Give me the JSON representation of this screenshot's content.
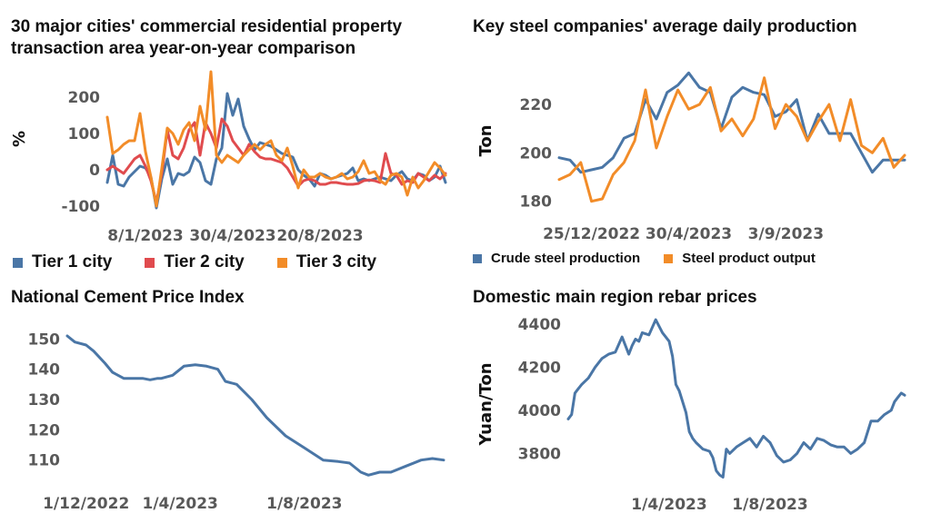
{
  "colors": {
    "tier1": "#4a76a6",
    "tier2": "#e04b4e",
    "tier3": "#f28c28",
    "crude": "#4a76a6",
    "steel": "#f28c28",
    "cement": "#4a76a6",
    "rebar": "#4a76a6"
  },
  "chart_data": [
    {
      "id": "property",
      "type": "line",
      "title": "30 major cities' commercial residential property transaction area year-on-year comparison",
      "ylabel": "%",
      "xlabel": "",
      "ylim": [
        -120,
        280
      ],
      "yticks": [
        "200",
        "100",
        "0",
        "-100"
      ],
      "ytick_values": [
        200,
        100,
        0,
        -100
      ],
      "xticks": [
        "8/1/2023",
        "30/4/2023",
        "20/8/2023"
      ],
      "xtick_index": [
        7,
        23,
        39
      ],
      "n_points": 63,
      "legend_position": "bottom",
      "series": [
        {
          "name": "Tier 1 city",
          "color_key": "tier1",
          "values": [
            -35,
            40,
            -40,
            -45,
            -20,
            -5,
            10,
            5,
            -20,
            -105,
            -25,
            30,
            -40,
            -10,
            -15,
            -5,
            35,
            20,
            -30,
            -40,
            30,
            60,
            210,
            150,
            195,
            120,
            85,
            55,
            75,
            70,
            65,
            55,
            45,
            40,
            35,
            0,
            -15,
            -25,
            -45,
            -10,
            -15,
            -25,
            -20,
            -15,
            -10,
            5,
            -30,
            -25,
            -30,
            -25,
            -20,
            -25,
            -30,
            -15,
            -5,
            -25,
            -30,
            -10,
            -15,
            -30,
            -20,
            10,
            -35
          ]
        },
        {
          "name": "Tier 2 city",
          "color_key": "tier2",
          "values": [
            0,
            10,
            0,
            -10,
            10,
            30,
            40,
            10,
            -30,
            -90,
            -10,
            110,
            40,
            30,
            60,
            110,
            130,
            40,
            130,
            100,
            60,
            140,
            120,
            80,
            60,
            40,
            70,
            50,
            35,
            30,
            30,
            25,
            20,
            5,
            -20,
            -45,
            -30,
            -25,
            -30,
            -40,
            -40,
            -35,
            -35,
            -38,
            -40,
            -40,
            -38,
            -30,
            -28,
            -30,
            -35,
            45,
            -10,
            -15,
            -40,
            -30,
            -35,
            -10,
            -20,
            -30,
            -15,
            -25,
            -10
          ]
        },
        {
          "name": "Tier 3 city",
          "color_key": "tier3",
          "values": [
            145,
            45,
            55,
            70,
            80,
            80,
            155,
            50,
            -20,
            -100,
            5,
            115,
            100,
            70,
            110,
            130,
            80,
            175,
            110,
            270,
            40,
            20,
            40,
            30,
            20,
            40,
            55,
            70,
            55,
            70,
            80,
            40,
            25,
            60,
            10,
            -50,
            0,
            -20,
            -20,
            -10,
            -20,
            -25,
            -20,
            -10,
            -25,
            -20,
            -5,
            25,
            -10,
            -5,
            -30,
            -40,
            -15,
            -10,
            -20,
            -70,
            -20,
            -50,
            -30,
            -5,
            20,
            5,
            -15
          ]
        }
      ]
    },
    {
      "id": "steel",
      "type": "line",
      "title": "Key steel companies' average daily production",
      "ylabel": "Ton",
      "xlabel": "",
      "ylim": [
        175,
        235
      ],
      "yticks": [
        "220",
        "200",
        "180"
      ],
      "ytick_values": [
        220,
        200,
        180
      ],
      "xticks": [
        "25/12/2022",
        "30/4/2023",
        "3/9/2023"
      ],
      "xtick_index": [
        3,
        12,
        21
      ],
      "n_points": 33,
      "legend_position": "bottom",
      "series": [
        {
          "name": "Crude steel production",
          "color_key": "crude",
          "values": [
            198,
            197,
            192,
            193,
            194,
            198,
            206,
            208,
            222,
            214,
            225,
            228,
            233,
            227,
            225,
            210,
            223,
            227,
            225,
            224,
            215,
            217,
            222,
            205,
            216,
            208,
            208,
            208,
            200,
            192,
            197,
            197,
            197
          ]
        },
        {
          "name": "Steel product output",
          "color_key": "steel",
          "values": [
            189,
            191,
            196,
            180,
            181,
            191,
            196,
            205,
            226,
            202,
            215,
            226,
            218,
            220,
            227,
            209,
            214,
            207,
            214,
            231,
            210,
            220,
            215,
            205,
            213,
            220,
            205,
            222,
            203,
            200,
            206,
            194,
            199
          ]
        }
      ]
    },
    {
      "id": "cement",
      "type": "line",
      "title": "National Cement Price Index",
      "ylabel": "",
      "xlabel": "",
      "ylim": [
        103,
        154
      ],
      "yticks": [
        "150",
        "140",
        "130",
        "120",
        "110"
      ],
      "ytick_values": [
        150,
        140,
        130,
        120,
        110
      ],
      "xticks": [
        "1/12/2022",
        "1/4/2023",
        "1/8/2023"
      ],
      "xtick_frac": [
        0.05,
        0.3,
        0.63
      ],
      "series": [
        {
          "name": "",
          "color_key": "cement",
          "x": [
            0,
            0.02,
            0.05,
            0.07,
            0.1,
            0.12,
            0.15,
            0.18,
            0.2,
            0.22,
            0.24,
            0.25,
            0.28,
            0.31,
            0.34,
            0.37,
            0.4,
            0.42,
            0.45,
            0.49,
            0.53,
            0.58,
            0.63,
            0.68,
            0.72,
            0.75,
            0.78,
            0.8,
            0.83,
            0.86,
            0.9,
            0.94,
            0.97,
            1
          ],
          "values": [
            151,
            149,
            148,
            146,
            142,
            139,
            137,
            137,
            137,
            136.5,
            137,
            137,
            138,
            141,
            141.5,
            141,
            140,
            136,
            135,
            130,
            124,
            118,
            114,
            110,
            109.5,
            109,
            106,
            105,
            106,
            106,
            108,
            110,
            110.5,
            110
          ]
        }
      ]
    },
    {
      "id": "rebar",
      "type": "line",
      "title": "Domestic main region rebar prices",
      "ylabel": "Yuan/Ton",
      "xlabel": "",
      "ylim": [
        3650,
        4450
      ],
      "yticks": [
        "4400",
        "4200",
        "4000",
        "3800"
      ],
      "ytick_values": [
        4400,
        4200,
        4000,
        3800
      ],
      "xticks": [
        "1/4/2023",
        "1/8/2023"
      ],
      "xtick_frac": [
        0.3,
        0.6
      ],
      "series": [
        {
          "name": "",
          "color_key": "rebar",
          "x": [
            0,
            0.01,
            0.02,
            0.03,
            0.04,
            0.06,
            0.08,
            0.1,
            0.12,
            0.14,
            0.16,
            0.18,
            0.19,
            0.2,
            0.21,
            0.22,
            0.24,
            0.26,
            0.28,
            0.3,
            0.31,
            0.32,
            0.33,
            0.35,
            0.36,
            0.37,
            0.38,
            0.4,
            0.42,
            0.43,
            0.44,
            0.45,
            0.46,
            0.47,
            0.48,
            0.5,
            0.52,
            0.54,
            0.56,
            0.58,
            0.6,
            0.62,
            0.64,
            0.66,
            0.68,
            0.7,
            0.72,
            0.74,
            0.76,
            0.78,
            0.8,
            0.82,
            0.84,
            0.86,
            0.88,
            0.9,
            0.92,
            0.94,
            0.96,
            0.97,
            0.98,
            0.99,
            1
          ],
          "values": [
            3960,
            3980,
            4080,
            4100,
            4120,
            4150,
            4200,
            4240,
            4260,
            4270,
            4340,
            4260,
            4300,
            4330,
            4320,
            4360,
            4350,
            4420,
            4360,
            4320,
            4250,
            4120,
            4090,
            3990,
            3900,
            3870,
            3850,
            3820,
            3810,
            3780,
            3720,
            3700,
            3690,
            3820,
            3800,
            3830,
            3850,
            3870,
            3830,
            3880,
            3850,
            3790,
            3760,
            3770,
            3800,
            3850,
            3820,
            3870,
            3860,
            3840,
            3830,
            3830,
            3800,
            3820,
            3850,
            3950,
            3950,
            3980,
            4000,
            4040,
            4060,
            4080,
            4070
          ]
        }
      ]
    }
  ],
  "legends": {
    "property": [
      {
        "label": "Tier 1 city",
        "color_key": "tier1"
      },
      {
        "label": "Tier 2 city",
        "color_key": "tier2"
      },
      {
        "label": "Tier 3 city",
        "color_key": "tier3"
      }
    ],
    "steel": [
      {
        "label": "Crude steel production",
        "color_key": "crude"
      },
      {
        "label": "Steel product output",
        "color_key": "steel"
      }
    ]
  }
}
